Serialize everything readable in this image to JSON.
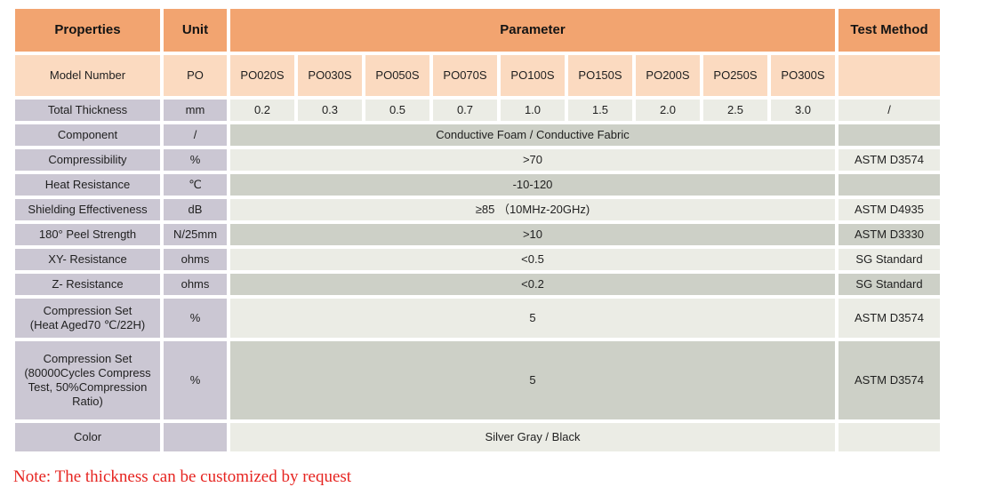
{
  "table": {
    "header": {
      "properties": "Properties",
      "unit": "Unit",
      "parameter": "Parameter",
      "test_method": "Test Method"
    },
    "model_row": {
      "property": "Model Number",
      "unit": "PO",
      "models": [
        "PO020S",
        "PO030S",
        "PO050S",
        "PO070S",
        "PO100S",
        "PO150S",
        "PO200S",
        "PO250S",
        "PO300S"
      ],
      "test_method": ""
    },
    "thickness_row": {
      "property": "Total Thickness",
      "unit": "mm",
      "values": [
        "0.2",
        "0.3",
        "0.5",
        "0.7",
        "1.0",
        "1.5",
        "2.0",
        "2.5",
        "3.0"
      ],
      "test_method": "/"
    },
    "rows": [
      {
        "property": "Component",
        "unit": "/",
        "value": "Conductive Foam / Conductive Fabric",
        "test_method": ""
      },
      {
        "property": "Compressibility",
        "unit": "%",
        "value": ">70",
        "test_method": "ASTM D3574"
      },
      {
        "property": "Heat Resistance",
        "unit": "℃",
        "value": "-10-120",
        "test_method": ""
      },
      {
        "property": "Shielding Effectiveness",
        "unit": "dB",
        "value": "≥85 （10MHz-20GHz)",
        "test_method": "ASTM D4935"
      },
      {
        "property": "180° Peel Strength",
        "unit": "N/25mm",
        "value": ">10",
        "test_method": "ASTM D3330"
      },
      {
        "property": "XY- Resistance",
        "unit": "ohms",
        "value": "<0.5",
        "test_method": "SG Standard"
      },
      {
        "property": "Z- Resistance",
        "unit": "ohms",
        "value": "<0.2",
        "test_method": "SG Standard"
      },
      {
        "property": "Compression Set\n(Heat Aged70 ℃/22H)",
        "unit": "%",
        "value": "5",
        "test_method": "ASTM D3574"
      },
      {
        "property": "Compression Set\n(80000Cycles Compress\nTest, 50%Compression\nRatio)",
        "unit": "%",
        "value": "5",
        "test_method": "ASTM D3574"
      },
      {
        "property": "Color",
        "unit": "",
        "value": "Silver Gray / Black",
        "test_method": ""
      }
    ]
  },
  "note": "Note: The thickness can be customized by request",
  "colors": {
    "header_orange": "#F2A470",
    "model_row_orange": "#FBDAC0",
    "property_lavender": "#CBC7D3",
    "row_light_gray": "#EBECE5",
    "row_dark_gray": "#CDD0C7",
    "note_red": "#E62420"
  }
}
